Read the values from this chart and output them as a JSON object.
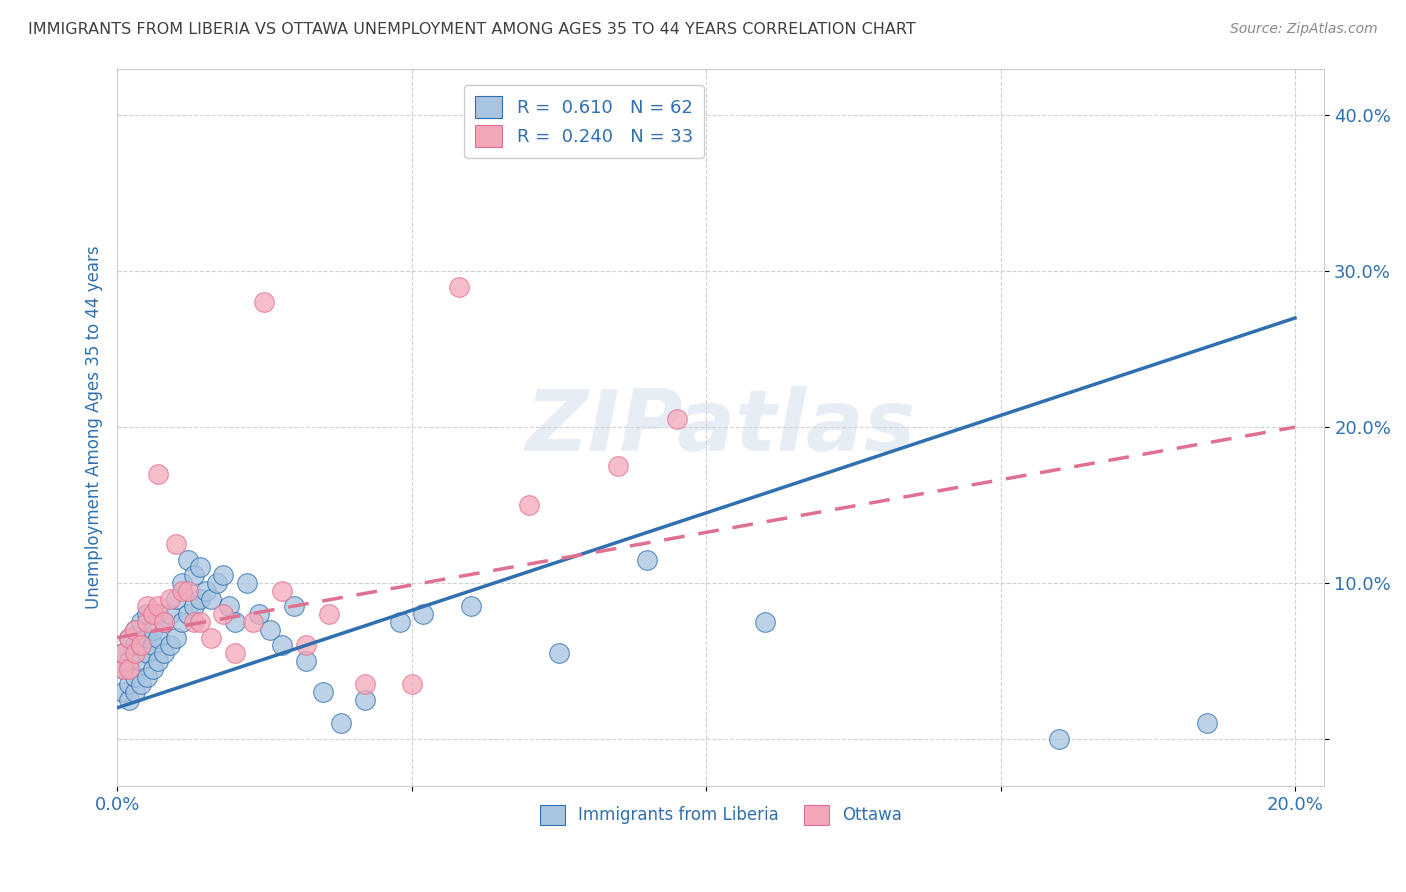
{
  "title": "IMMIGRANTS FROM LIBERIA VS OTTAWA UNEMPLOYMENT AMONG AGES 35 TO 44 YEARS CORRELATION CHART",
  "source": "Source: ZipAtlas.com",
  "ylabel": "Unemployment Among Ages 35 to 44 years",
  "xlim": [
    0.0,
    0.205
  ],
  "ylim": [
    -0.03,
    0.43
  ],
  "xticks": [
    0.0,
    0.05,
    0.1,
    0.15,
    0.2
  ],
  "yticks": [
    0.0,
    0.1,
    0.2,
    0.3,
    0.4
  ],
  "xticklabels_show": [
    "0.0%",
    "20.0%"
  ],
  "yticklabels_show": [
    "10.0%",
    "20.0%",
    "30.0%",
    "40.0%"
  ],
  "legend_labels": [
    "Immigrants from Liberia",
    "Ottawa"
  ],
  "blue_R": "0.610",
  "blue_N": "62",
  "pink_R": "0.240",
  "pink_N": "33",
  "blue_color": "#a8c4e0",
  "pink_color": "#f4a7b9",
  "blue_line_color": "#3070b0",
  "pink_line_color": "#e07090",
  "title_color": "#404040",
  "axis_label_color": "#3070b0",
  "tick_label_color": "#3070b0",
  "watermark": "ZIPatlas",
  "blue_scatter_x": [
    0.001,
    0.001,
    0.001,
    0.002,
    0.002,
    0.002,
    0.002,
    0.003,
    0.003,
    0.003,
    0.003,
    0.004,
    0.004,
    0.004,
    0.004,
    0.005,
    0.005,
    0.005,
    0.005,
    0.006,
    0.006,
    0.006,
    0.007,
    0.007,
    0.007,
    0.008,
    0.008,
    0.009,
    0.009,
    0.01,
    0.01,
    0.011,
    0.011,
    0.012,
    0.012,
    0.013,
    0.013,
    0.014,
    0.014,
    0.015,
    0.016,
    0.017,
    0.018,
    0.019,
    0.02,
    0.022,
    0.024,
    0.026,
    0.028,
    0.03,
    0.032,
    0.035,
    0.038,
    0.042,
    0.048,
    0.052,
    0.06,
    0.075,
    0.09,
    0.11,
    0.16,
    0.185
  ],
  "blue_scatter_y": [
    0.03,
    0.045,
    0.055,
    0.025,
    0.035,
    0.05,
    0.065,
    0.03,
    0.04,
    0.06,
    0.07,
    0.035,
    0.05,
    0.06,
    0.075,
    0.04,
    0.055,
    0.065,
    0.08,
    0.045,
    0.06,
    0.07,
    0.05,
    0.065,
    0.08,
    0.055,
    0.075,
    0.06,
    0.08,
    0.065,
    0.09,
    0.075,
    0.1,
    0.08,
    0.115,
    0.085,
    0.105,
    0.09,
    0.11,
    0.095,
    0.09,
    0.1,
    0.105,
    0.085,
    0.075,
    0.1,
    0.08,
    0.07,
    0.06,
    0.085,
    0.05,
    0.03,
    0.01,
    0.025,
    0.075,
    0.08,
    0.085,
    0.055,
    0.115,
    0.075,
    0.0,
    0.01
  ],
  "pink_scatter_x": [
    0.001,
    0.001,
    0.002,
    0.002,
    0.003,
    0.003,
    0.004,
    0.005,
    0.005,
    0.006,
    0.007,
    0.007,
    0.008,
    0.009,
    0.01,
    0.011,
    0.012,
    0.013,
    0.014,
    0.016,
    0.018,
    0.02,
    0.023,
    0.025,
    0.028,
    0.032,
    0.036,
    0.042,
    0.05,
    0.058,
    0.07,
    0.085,
    0.095
  ],
  "pink_scatter_y": [
    0.045,
    0.055,
    0.045,
    0.065,
    0.055,
    0.07,
    0.06,
    0.075,
    0.085,
    0.08,
    0.17,
    0.085,
    0.075,
    0.09,
    0.125,
    0.095,
    0.095,
    0.075,
    0.075,
    0.065,
    0.08,
    0.055,
    0.075,
    0.28,
    0.095,
    0.06,
    0.08,
    0.035,
    0.035,
    0.29,
    0.15,
    0.175,
    0.205
  ],
  "blue_line_x0": 0.0,
  "blue_line_y0": 0.02,
  "blue_line_x1": 0.2,
  "blue_line_y1": 0.27,
  "pink_line_x0": 0.0,
  "pink_line_y0": 0.065,
  "pink_line_x1": 0.2,
  "pink_line_y1": 0.2
}
